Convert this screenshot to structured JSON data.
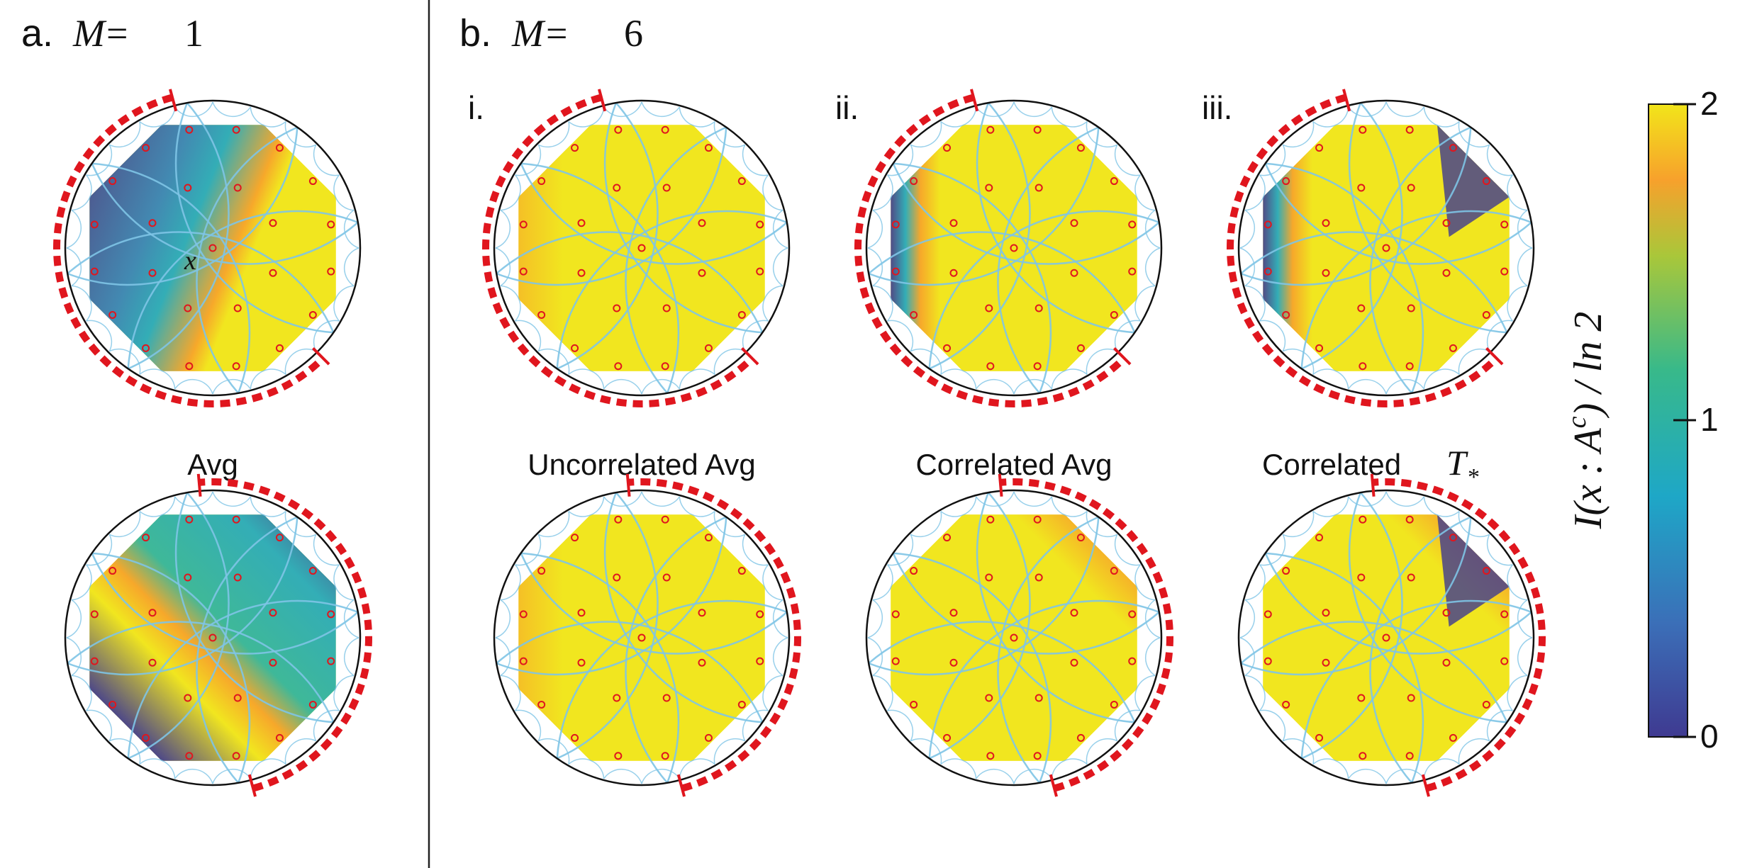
{
  "panel_a": {
    "letter": "a.",
    "eq_var": "M",
    "eq_op": " = ",
    "eq_val": "1",
    "bottom_caption": "Avg",
    "point_label": "x"
  },
  "panel_b": {
    "letter": "b.",
    "eq_var": "M",
    "eq_op": " = ",
    "eq_val": "6",
    "sub_labels": [
      "i.",
      "ii.",
      "iii."
    ],
    "captions": [
      "Uncorrelated Avg",
      "Correlated Avg",
      "Correlated "
    ],
    "caption_math": "T",
    "caption_sub": "*"
  },
  "colorbar": {
    "ticks": [
      "2",
      "1",
      "0"
    ],
    "title_lhs": "I(x : A",
    "title_sup": "c",
    "title_rhs": ") / ln 2",
    "colors": [
      "#f2e51a",
      "#f7a12c",
      "#7bc34e",
      "#1ea7c7",
      "#3b6fb8",
      "#3f3a91"
    ]
  },
  "style_colors": {
    "boundary_dash": "#e0161e",
    "tiling": "#7ec4e6",
    "vertex": "#e0161e",
    "yellow": "#f1e61f"
  }
}
